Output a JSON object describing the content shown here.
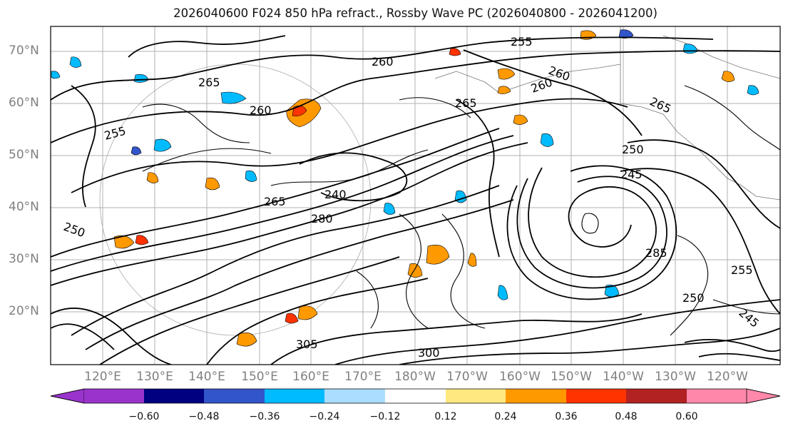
{
  "title": "2026040600 F024 850 hPa refract., Rossby Wave PC (2026040800 - 2026041200)",
  "lat_labels": [
    "70°N",
    "60°N",
    "50°N",
    "40°N",
    "30°N",
    "20°N"
  ],
  "lon_labels": [
    "120°E",
    "130°E",
    "140°E",
    "150°E",
    "160°E",
    "170°E",
    "180°W",
    "170°W",
    "160°W",
    "150°W",
    "140°W",
    "130°W",
    "120°W"
  ],
  "contour_labels": [
    "255",
    "260",
    "260",
    "265",
    "265",
    "260",
    "260",
    "265",
    "255",
    "250",
    "245",
    "240",
    "280",
    "265",
    "250",
    "285",
    "255",
    "250",
    "245",
    "300",
    "305"
  ],
  "colorbar": {
    "labels": [
      "−0.60",
      "−0.48",
      "−0.36",
      "−0.24",
      "−0.12",
      "0.12",
      "0.24",
      "0.36",
      "0.48",
      "0.60"
    ],
    "colors": [
      "#9933cc",
      "#000080",
      "#3355cc",
      "#00bbff",
      "#aaddff",
      "#ffffff",
      "#ffe880",
      "#ff9900",
      "#ff3300",
      "#b22222",
      "#ff88aa"
    ]
  }
}
